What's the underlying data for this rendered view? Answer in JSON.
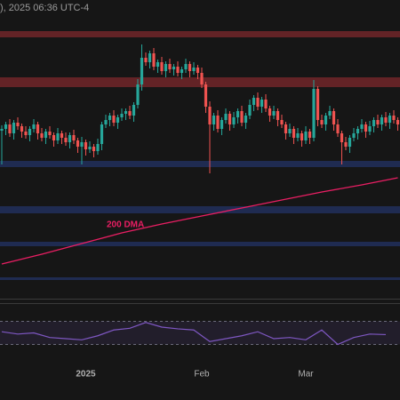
{
  "chart_data": {
    "type": "candlestick",
    "header": "), 2025 06:36 UTC-4",
    "ylim": [
      0,
      335
    ],
    "up_color": "#26a69a",
    "down_color": "#ef5350",
    "open": [
      188,
      190,
      195,
      185,
      197,
      193,
      187,
      183,
      190,
      195,
      185,
      180,
      187,
      183,
      177,
      185,
      180,
      175,
      183,
      177,
      170,
      175,
      167,
      170,
      165,
      173,
      195,
      200,
      205,
      197,
      203,
      207,
      210,
      205,
      217,
      240,
      270,
      265,
      275,
      260,
      265,
      255,
      263,
      257,
      260,
      253,
      257,
      263,
      255,
      259,
      253,
      240,
      215,
      195,
      205,
      190,
      200,
      207,
      195,
      203,
      210,
      197,
      205,
      217,
      225,
      215,
      223,
      213,
      205,
      210,
      200,
      195,
      185,
      190,
      180,
      185,
      177,
      187,
      180,
      235,
      200,
      195,
      205,
      210,
      195,
      185,
      175,
      170,
      180,
      185,
      190,
      195,
      187,
      193,
      200,
      195,
      203,
      197,
      205,
      200
    ],
    "high": [
      194,
      198,
      201,
      200,
      203,
      196,
      193,
      193,
      201,
      198,
      191,
      190,
      193,
      186,
      191,
      188,
      186,
      186,
      189,
      180,
      181,
      178,
      176,
      173,
      179,
      198,
      206,
      208,
      211,
      206,
      213,
      213,
      216,
      220,
      246,
      285,
      276,
      278,
      281,
      268,
      271,
      266,
      269,
      263,
      266,
      260,
      269,
      266,
      265,
      262,
      259,
      243,
      221,
      208,
      211,
      203,
      213,
      210,
      209,
      213,
      216,
      208,
      223,
      228,
      231,
      226,
      229,
      216,
      216,
      213,
      206,
      198,
      196,
      193,
      191,
      188,
      193,
      190,
      245,
      238,
      206,
      208,
      216,
      213,
      201,
      188,
      181,
      183,
      191,
      193,
      201,
      198,
      199,
      203,
      206,
      206,
      209,
      208,
      211,
      203
    ],
    "low": [
      150,
      183,
      181,
      178,
      189,
      180,
      179,
      176,
      186,
      178,
      176,
      173,
      179,
      170,
      173,
      173,
      171,
      168,
      173,
      163,
      150,
      160,
      163,
      158,
      161,
      166,
      191,
      193,
      193,
      190,
      199,
      200,
      201,
      198,
      213,
      233,
      261,
      258,
      256,
      253,
      251,
      248,
      253,
      250,
      249,
      246,
      253,
      248,
      251,
      246,
      236,
      208,
      140,
      188,
      186,
      183,
      196,
      188,
      191,
      196,
      193,
      190,
      201,
      210,
      211,
      208,
      209,
      198,
      201,
      193,
      191,
      178,
      181,
      173,
      176,
      170,
      173,
      173,
      176,
      193,
      191,
      188,
      201,
      188,
      181,
      150,
      166,
      163,
      176,
      178,
      186,
      180,
      183,
      186,
      191,
      188,
      193,
      190,
      196,
      188
    ],
    "close": [
      190,
      195,
      185,
      197,
      193,
      187,
      183,
      190,
      195,
      185,
      180,
      187,
      183,
      177,
      185,
      180,
      175,
      183,
      177,
      170,
      175,
      167,
      170,
      165,
      173,
      195,
      200,
      205,
      197,
      203,
      207,
      210,
      205,
      217,
      240,
      270,
      265,
      275,
      260,
      265,
      255,
      263,
      257,
      260,
      253,
      257,
      263,
      255,
      259,
      253,
      240,
      215,
      195,
      205,
      190,
      200,
      207,
      195,
      203,
      210,
      197,
      205,
      217,
      225,
      215,
      223,
      213,
      205,
      210,
      200,
      195,
      185,
      190,
      180,
      185,
      177,
      187,
      180,
      235,
      200,
      195,
      205,
      210,
      195,
      185,
      175,
      170,
      180,
      185,
      190,
      195,
      187,
      193,
      200,
      195,
      203,
      197,
      205,
      200,
      195
    ],
    "levels": [
      {
        "range": [
          293,
          300
        ],
        "color": "#6b2528"
      },
      {
        "range": [
          237,
          248
        ],
        "color": "#6b2528"
      },
      {
        "range": [
          147,
          154
        ],
        "color": "#202d58"
      },
      {
        "range": [
          95,
          103
        ],
        "color": "#202d58"
      },
      {
        "range": [
          58,
          63
        ],
        "color": "#202d58"
      },
      {
        "range": [
          20,
          23
        ],
        "color": "#202d58"
      }
    ],
    "dma": {
      "name": "200 DMA",
      "color": "#e91e63",
      "x": [
        0,
        10,
        20,
        30,
        40,
        50,
        60,
        70,
        80,
        90,
        99
      ],
      "values": [
        38,
        49,
        61,
        73,
        83,
        92,
        101,
        110,
        119,
        127,
        135
      ]
    },
    "xticks": [
      {
        "value": 21,
        "label": "2025"
      },
      {
        "value": 50,
        "label": "Feb"
      },
      {
        "value": 76,
        "label": "Mar"
      }
    ],
    "rsi": {
      "color": "#7e57c2",
      "ylim": [
        0,
        100
      ],
      "bands": [
        30,
        70
      ],
      "x": [
        0,
        4,
        8,
        12,
        16,
        20,
        24,
        28,
        32,
        36,
        40,
        44,
        48,
        52,
        56,
        60,
        64,
        68,
        72,
        76,
        80,
        84,
        88,
        92,
        96
      ],
      "values": [
        52,
        48,
        50,
        42,
        40,
        38,
        45,
        55,
        58,
        68,
        60,
        57,
        55,
        35,
        40,
        45,
        52,
        40,
        42,
        38,
        55,
        30,
        42,
        48,
        47
      ]
    }
  }
}
